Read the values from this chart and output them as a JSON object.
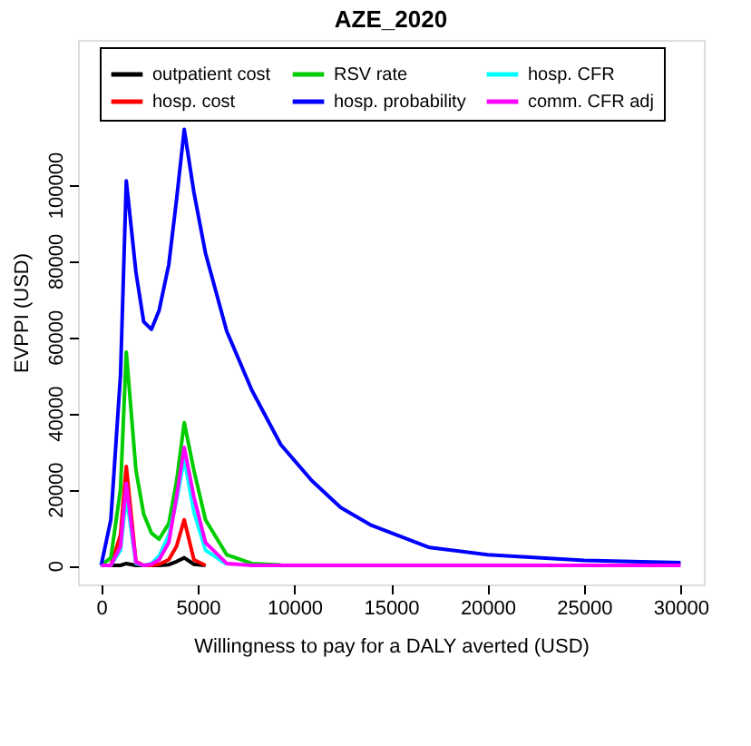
{
  "chart_data": {
    "type": "line",
    "title": "AZE_2020",
    "xlabel": "Willingness to pay for a DALY averted (USD)",
    "ylabel": "EVPPI (USD)",
    "x": [
      0,
      500,
      1000,
      1300,
      1800,
      2200,
      2600,
      3000,
      3500,
      3900,
      4300,
      4800,
      5400,
      6500,
      7800,
      9300,
      10900,
      12400,
      14000,
      17000,
      20000,
      25000,
      30000
    ],
    "series": [
      {
        "name": "outpatient cost",
        "color": "#000000",
        "values": [
          0,
          0,
          0,
          500,
          0,
          0,
          0,
          0,
          200,
          1000,
          2000,
          300,
          0,
          null,
          null,
          null,
          null,
          null,
          null,
          null,
          null,
          null,
          null
        ]
      },
      {
        "name": "hosp. cost",
        "color": "#ff0000",
        "values": [
          0,
          0,
          8000,
          26000,
          1000,
          0,
          0,
          300,
          1500,
          5000,
          12000,
          1500,
          0,
          null,
          null,
          null,
          null,
          null,
          null,
          null,
          null,
          null,
          null
        ]
      },
      {
        "name": "RSV rate",
        "color": "#00cd00",
        "values": [
          0,
          2000,
          20000,
          56000,
          25000,
          13500,
          8500,
          6900,
          11000,
          22000,
          37500,
          25000,
          12000,
          2800,
          500,
          100,
          null,
          null,
          null,
          null,
          null,
          null,
          null
        ]
      },
      {
        "name": "hosp. probability",
        "color": "#0000ff",
        "values": [
          0,
          12000,
          50000,
          101000,
          77000,
          64000,
          62000,
          67000,
          79000,
          96000,
          114500,
          98000,
          82000,
          61500,
          46000,
          31700,
          22300,
          15200,
          10500,
          4700,
          2800,
          1300,
          700
        ]
      },
      {
        "name": "hosp. CFR",
        "color": "#00ffff",
        "values": [
          0,
          0,
          4000,
          18000,
          500,
          0,
          500,
          2500,
          8000,
          17000,
          28000,
          14000,
          4000,
          300,
          null,
          null,
          null,
          null,
          null,
          null,
          null,
          null,
          null
        ]
      },
      {
        "name": "comm. CFR adj",
        "color": "#ff00ff",
        "values": [
          0,
          0,
          5000,
          21500,
          800,
          0,
          300,
          1500,
          6000,
          18000,
          31000,
          18000,
          6000,
          500,
          0,
          0,
          0,
          0,
          0,
          0,
          0,
          0,
          0
        ]
      }
    ],
    "xlim": [
      -1200,
      31200
    ],
    "ylim": [
      -5000,
      138000
    ],
    "xticks": [
      0,
      5000,
      10000,
      15000,
      20000,
      25000,
      30000
    ],
    "yticks": [
      0,
      20000,
      40000,
      60000,
      80000,
      100000
    ],
    "legend": "top",
    "grid": false,
    "marker": "none",
    "line_style": "solid"
  }
}
